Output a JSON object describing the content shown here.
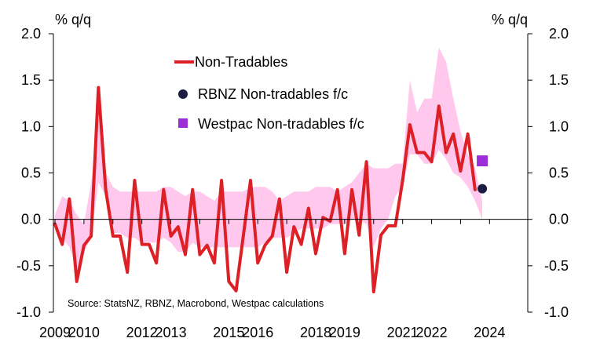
{
  "chart_data": {
    "type": "line",
    "left_axis_label": "% q/q",
    "right_axis_label": "% q/q",
    "ylim": [
      -1.0,
      2.0
    ],
    "yticks": [
      -1.0,
      -0.5,
      0.0,
      0.5,
      1.0,
      1.5,
      2.0
    ],
    "ytick_labels": [
      "-1.0",
      "-0.5",
      "0.0",
      "0.5",
      "1.0",
      "1.5",
      "2.0"
    ],
    "xlim": [
      2009.0,
      2024.75
    ],
    "xticks": [
      2009,
      2010,
      2012,
      2013,
      2015,
      2016,
      2018,
      2019,
      2021,
      2022,
      2024
    ],
    "xtick_labels": [
      "2009",
      "2010",
      "2012",
      "2013",
      "2015",
      "2016",
      "2018",
      "2019",
      "2021",
      "2022",
      "2024"
    ],
    "legend": {
      "position": "top-center",
      "entries": [
        "Non-Tradables",
        "RBNZ Non-tradables f/c",
        "Westpac Non-tradables f/c"
      ]
    },
    "source_note": "Source: StatsNZ, RBNZ, Macrobond, Westpac calculations",
    "colors": {
      "line": "#dd1f26",
      "band": "#ffc8ec",
      "rbnz": "#1f1c44",
      "westpac": "#9b2ed6",
      "axis": "#000000"
    },
    "series": [
      {
        "name": "Non-Tradables",
        "x": [
          2009.0,
          2009.25,
          2009.5,
          2009.75,
          2010.0,
          2010.25,
          2010.5,
          2010.75,
          2011.0,
          2011.25,
          2011.5,
          2011.75,
          2012.0,
          2012.25,
          2012.5,
          2012.75,
          2013.0,
          2013.25,
          2013.5,
          2013.75,
          2014.0,
          2014.25,
          2014.5,
          2014.75,
          2015.0,
          2015.25,
          2015.5,
          2015.75,
          2016.0,
          2016.25,
          2016.5,
          2016.75,
          2017.0,
          2017.25,
          2017.5,
          2017.75,
          2018.0,
          2018.25,
          2018.5,
          2018.75,
          2019.0,
          2019.25,
          2019.5,
          2019.75,
          2020.0,
          2020.25,
          2020.5,
          2020.75,
          2021.0,
          2021.25,
          2021.5,
          2021.75,
          2022.0,
          2022.25,
          2022.5,
          2022.75,
          2023.0,
          2023.25,
          2023.5
        ],
        "values": [
          -0.05,
          -0.27,
          0.22,
          -0.67,
          -0.28,
          -0.18,
          1.42,
          0.32,
          -0.18,
          -0.18,
          -0.57,
          0.42,
          -0.27,
          -0.27,
          -0.47,
          0.32,
          -0.18,
          -0.08,
          -0.38,
          0.32,
          -0.38,
          -0.28,
          -0.47,
          0.42,
          -0.67,
          -0.77,
          -0.18,
          0.42,
          -0.47,
          -0.28,
          -0.18,
          0.22,
          -0.57,
          -0.08,
          -0.27,
          0.12,
          -0.37,
          0.02,
          -0.02,
          0.32,
          -0.37,
          0.32,
          -0.17,
          0.62,
          -0.78,
          -0.17,
          -0.07,
          -0.07,
          0.42,
          1.02,
          0.72,
          0.72,
          0.62,
          1.22,
          0.72,
          0.92,
          0.52,
          0.92,
          0.32
        ]
      },
      {
        "name": "Non-tradables range",
        "x": [
          2009.0,
          2009.25,
          2009.5,
          2009.75,
          2010.0,
          2010.25,
          2010.5,
          2010.75,
          2011.0,
          2011.25,
          2011.5,
          2011.75,
          2012.0,
          2012.25,
          2012.5,
          2012.75,
          2013.0,
          2013.25,
          2013.5,
          2013.75,
          2014.0,
          2014.25,
          2014.5,
          2014.75,
          2015.0,
          2015.25,
          2015.5,
          2015.75,
          2016.0,
          2016.25,
          2016.5,
          2016.75,
          2017.0,
          2017.25,
          2017.5,
          2017.75,
          2018.0,
          2018.25,
          2018.5,
          2018.75,
          2019.0,
          2019.25,
          2019.5,
          2019.75,
          2020.0,
          2020.25,
          2020.5,
          2020.75,
          2021.0,
          2021.25,
          2021.5,
          2021.75,
          2022.0,
          2022.25,
          2022.5,
          2022.75,
          2023.0,
          2023.25,
          2023.5,
          2023.75
        ],
        "upper": [
          0.05,
          0.25,
          0.2,
          0.05,
          -0.05,
          0.4,
          1.1,
          0.5,
          0.35,
          0.3,
          0.3,
          0.3,
          0.3,
          0.3,
          0.3,
          0.35,
          0.35,
          0.3,
          0.25,
          0.3,
          0.3,
          0.25,
          0.2,
          0.3,
          0.3,
          0.3,
          0.3,
          0.35,
          0.35,
          0.35,
          0.3,
          0.2,
          0.25,
          0.3,
          0.3,
          0.3,
          0.35,
          0.35,
          0.35,
          0.3,
          0.35,
          0.4,
          0.5,
          0.6,
          0.55,
          0.55,
          0.55,
          0.6,
          0.6,
          1.5,
          1.15,
          1.3,
          1.3,
          1.85,
          1.7,
          1.3,
          0.95,
          0.7,
          0.55,
          0.2
        ],
        "lower": [
          -0.05,
          -0.2,
          -0.3,
          -0.55,
          -0.35,
          -0.2,
          0.4,
          0.25,
          -0.15,
          -0.15,
          -0.2,
          -0.2,
          -0.25,
          -0.25,
          -0.25,
          -0.2,
          -0.25,
          -0.35,
          -0.35,
          -0.25,
          -0.3,
          -0.3,
          -0.3,
          -0.3,
          -0.3,
          -0.3,
          -0.3,
          -0.3,
          -0.3,
          -0.25,
          -0.2,
          -0.2,
          -0.2,
          -0.15,
          -0.1,
          -0.1,
          -0.1,
          -0.1,
          -0.05,
          -0.05,
          -0.05,
          0.0,
          0.0,
          -0.05,
          -0.3,
          -0.1,
          0.0,
          0.25,
          0.35,
          0.7,
          0.7,
          0.6,
          0.6,
          0.75,
          0.65,
          0.5,
          0.45,
          0.35,
          0.2,
          0.0
        ]
      }
    ],
    "points": [
      {
        "name": "RBNZ Non-tradables f/c",
        "x": 2023.75,
        "y": 0.33
      },
      {
        "name": "Westpac Non-tradables f/c",
        "x": 2023.75,
        "y": 0.63
      }
    ]
  }
}
